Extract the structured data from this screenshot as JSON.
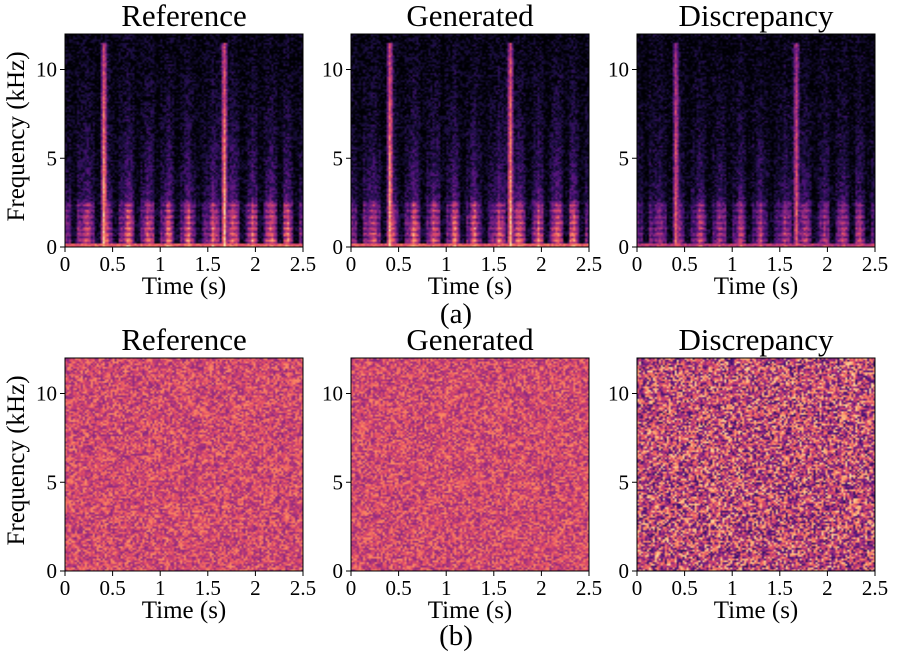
{
  "colormap": [
    "#000004",
    "#1c1044",
    "#4f127b",
    "#812581",
    "#b5367a",
    "#e55064",
    "#fb8761",
    "#fec287",
    "#fcfdbf"
  ],
  "chart_data": [
    {
      "type": "heatmap",
      "panel": "a",
      "title": "Reference",
      "xlabel": "Time (s)",
      "ylabel": "Frequency (kHz)",
      "xlim": [
        0,
        2.5
      ],
      "ylim": [
        0,
        12
      ],
      "xticks": [
        "0",
        "0.5",
        "1",
        "1.5",
        "2",
        "2.5"
      ],
      "yticks": [
        "0",
        "5",
        "10"
      ],
      "pattern": "speech"
    },
    {
      "type": "heatmap",
      "panel": "a",
      "title": "Generated",
      "xlabel": "Time (s)",
      "ylabel": "",
      "xlim": [
        0,
        2.5
      ],
      "ylim": [
        0,
        12
      ],
      "xticks": [
        "0",
        "0.5",
        "1",
        "1.5",
        "2",
        "2.5"
      ],
      "yticks": [
        "0",
        "5",
        "10"
      ],
      "pattern": "speech"
    },
    {
      "type": "heatmap",
      "panel": "a",
      "title": "Discrepancy",
      "xlabel": "Time (s)",
      "ylabel": "",
      "xlim": [
        0,
        2.5
      ],
      "ylim": [
        0,
        12
      ],
      "xticks": [
        "0",
        "0.5",
        "1",
        "1.5",
        "2",
        "2.5"
      ],
      "yticks": [
        "0",
        "5",
        "10"
      ],
      "pattern": "speech-diff"
    },
    {
      "type": "heatmap",
      "panel": "b",
      "title": "Reference",
      "xlabel": "Time (s)",
      "ylabel": "Frequency (kHz)",
      "xlim": [
        0,
        2.5
      ],
      "ylim": [
        0,
        12
      ],
      "xticks": [
        "0",
        "0.5",
        "1",
        "1.5",
        "2",
        "2.5"
      ],
      "yticks": [
        "0",
        "5",
        "10"
      ],
      "pattern": "noise"
    },
    {
      "type": "heatmap",
      "panel": "b",
      "title": "Generated",
      "xlabel": "Time (s)",
      "ylabel": "",
      "xlim": [
        0,
        2.5
      ],
      "ylim": [
        0,
        12
      ],
      "xticks": [
        "0",
        "0.5",
        "1",
        "1.5",
        "2",
        "2.5"
      ],
      "yticks": [
        "0",
        "5",
        "10"
      ],
      "pattern": "noise"
    },
    {
      "type": "heatmap",
      "panel": "b",
      "title": "Discrepancy",
      "xlabel": "Time (s)",
      "ylabel": "",
      "xlim": [
        0,
        2.5
      ],
      "ylim": [
        0,
        12
      ],
      "xticks": [
        "0",
        "0.5",
        "1",
        "1.5",
        "2",
        "2.5"
      ],
      "yticks": [
        "0",
        "5",
        "10"
      ],
      "pattern": "noise-diff"
    }
  ],
  "captions": {
    "a": "(a)",
    "b": "(b)"
  }
}
